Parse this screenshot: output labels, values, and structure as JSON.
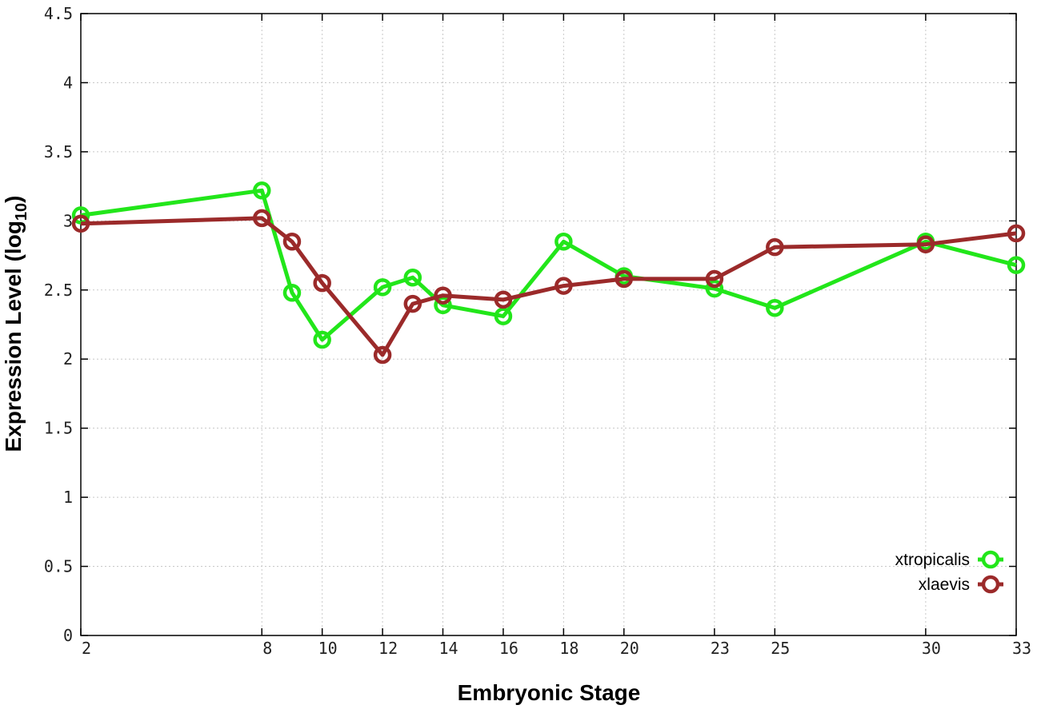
{
  "chart_data": {
    "type": "line",
    "xlabel": "Embryonic Stage",
    "ylabel_main": "Expression Level (log",
    "ylabel_sub": "10",
    "ylabel_close": ")",
    "xlim": [
      2,
      33
    ],
    "ylim": [
      0,
      4.5
    ],
    "x_ticks": [
      2,
      8,
      10,
      12,
      14,
      16,
      18,
      20,
      23,
      25,
      30,
      33
    ],
    "y_ticks": [
      "0",
      "0.5",
      "1",
      "1.5",
      "2",
      "2.5",
      "3",
      "3.5",
      "4",
      "4.5"
    ],
    "grid": true,
    "legend_position": "bottom-right",
    "series": [
      {
        "name": "xtropicalis",
        "color": "#22e61a",
        "x": [
          2,
          8,
          9,
          10,
          12,
          13,
          14,
          16,
          18,
          20,
          23,
          25,
          30,
          33
        ],
        "y": [
          3.04,
          3.22,
          2.48,
          2.14,
          2.52,
          2.59,
          2.39,
          2.31,
          2.85,
          2.6,
          2.51,
          2.37,
          2.85,
          2.68
        ]
      },
      {
        "name": "xlaevis",
        "color": "#9b2a2a",
        "x": [
          2,
          8,
          9,
          10,
          12,
          13,
          14,
          16,
          18,
          20,
          23,
          25,
          30,
          33
        ],
        "y": [
          2.98,
          3.02,
          2.85,
          2.55,
          2.03,
          2.4,
          2.46,
          2.43,
          2.53,
          2.58,
          2.58,
          2.81,
          2.83,
          2.91
        ]
      }
    ]
  }
}
